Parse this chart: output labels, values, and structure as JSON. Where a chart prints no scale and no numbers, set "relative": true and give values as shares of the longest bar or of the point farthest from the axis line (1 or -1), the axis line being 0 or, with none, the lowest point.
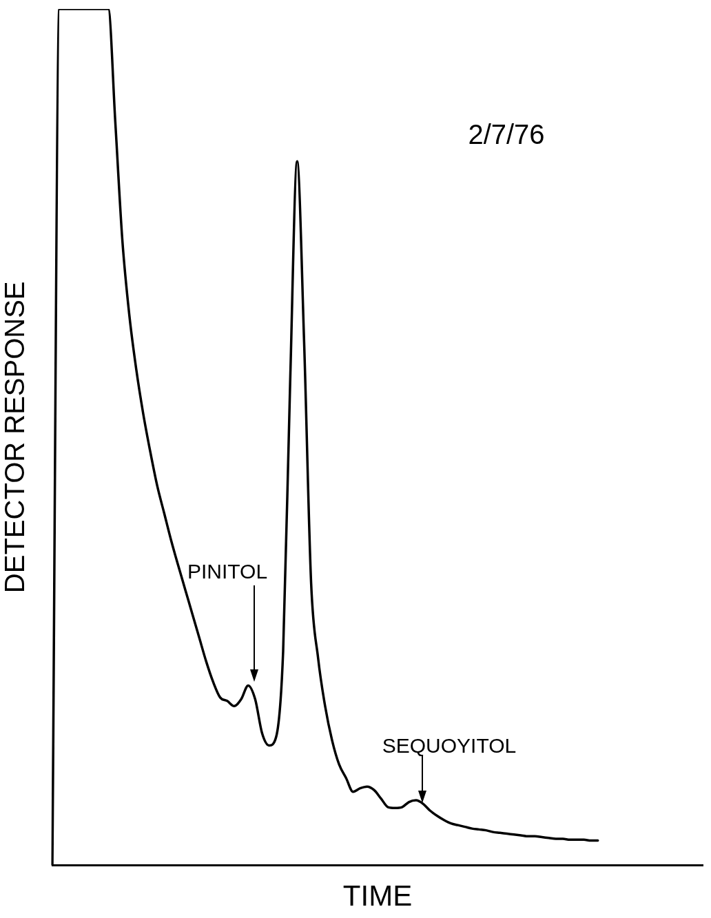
{
  "chart_data": {
    "type": "line",
    "relative": true,
    "xlabel": "TIME",
    "ylabel": "DETECTOR RESPONSE",
    "tick_labels": false,
    "marker": "none",
    "annotations": [
      "2/7/76",
      "PINITOL",
      "SEQUOYITOL"
    ],
    "categories": [
      null,
      null,
      null,
      null,
      null,
      null,
      null,
      null,
      null,
      null,
      null,
      null,
      null,
      null,
      null,
      null,
      null,
      null,
      null,
      null,
      null,
      null,
      null,
      null,
      null,
      null,
      null,
      null,
      null,
      null,
      null,
      null,
      null,
      null,
      null,
      null,
      null,
      null,
      null,
      null,
      null,
      null,
      null,
      null,
      null,
      null,
      null,
      null,
      null,
      null,
      null,
      null,
      null,
      null,
      null,
      null,
      null,
      null,
      null,
      null,
      null,
      null,
      null,
      null,
      null,
      null,
      null,
      null,
      null,
      null,
      null,
      null,
      null,
      null,
      null,
      null,
      null,
      null,
      null,
      null,
      null,
      null,
      null,
      null,
      null,
      null,
      null,
      null,
      null,
      null,
      null,
      null,
      null,
      null
    ],
    "series": [
      {
        "color": "#000000",
        "values": [
          0,
          1,
          1,
          1,
          1,
          1,
          1,
          1,
          1,
          0.868,
          0.731,
          0.643,
          0.579,
          0.527,
          0.483,
          0.443,
          0.411,
          0.379,
          0.35,
          0.322,
          0.294,
          0.266,
          0.238,
          0.214,
          0.196,
          0.192,
          0.186,
          0.194,
          0.21,
          0.194,
          0.154,
          0.14,
          0.15,
          0.25,
          0.563,
          0.822,
          0.611,
          0.33,
          0.242,
          0.186,
          0.146,
          0.118,
          0.102,
          0.086,
          0.09,
          0.092,
          0.088,
          0.078,
          0.068,
          0.067,
          0.068,
          0.074,
          0.076,
          0.072,
          0.064,
          0.058,
          0.053,
          0.049,
          0.047,
          0.045,
          0.043,
          0.042,
          0.041,
          0.039,
          0.038,
          0.037,
          0.036,
          0.035,
          0.034,
          0.034,
          0.033,
          0.032,
          0.031,
          0.031,
          0.03,
          0.03,
          0.03,
          0.029,
          0.029,
          null,
          null,
          null,
          null,
          null,
          null,
          null,
          null,
          null,
          null,
          null,
          null,
          null,
          null,
          null
        ]
      }
    ]
  }
}
